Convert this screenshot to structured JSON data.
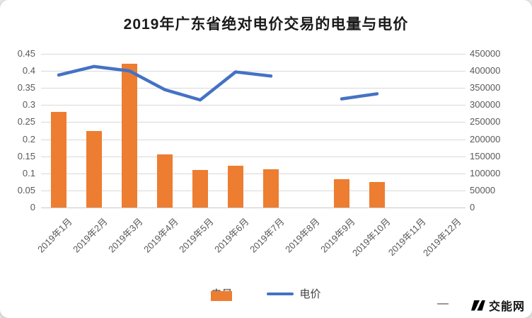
{
  "logo": {
    "text": "交能网"
  },
  "legend": [
    {
      "label": "电量",
      "type": "bar",
      "color": "#ED7D31"
    },
    {
      "label": "电价",
      "type": "line",
      "color": "#4472C4"
    }
  ],
  "chart_data": {
    "type": "combo",
    "title": "2019年广东省绝对电价交易的电量与电价",
    "categories": [
      "2019年1月",
      "2019年2月",
      "2019年3月",
      "2019年4月",
      "2019年5月",
      "2019年6月",
      "2019年7月",
      "2019年8月",
      "2019年9月",
      "2019年10月",
      "2019年11月",
      "2019年12月"
    ],
    "series": [
      {
        "name": "电量",
        "type": "bar",
        "axis": "left",
        "color": "#ED7D31",
        "values": [
          0.28,
          0.225,
          0.42,
          0.155,
          0.11,
          0.122,
          0.112,
          0,
          0.083,
          0.075,
          0,
          0
        ]
      },
      {
        "name": "电价",
        "type": "line",
        "axis": "right",
        "color": "#4472C4",
        "values": [
          388000,
          413000,
          400000,
          345000,
          315000,
          397000,
          385000,
          null,
          318000,
          333000,
          null,
          null
        ]
      }
    ],
    "left_axis": {
      "min": 0,
      "max": 0.45,
      "ticks": [
        "0",
        "0.05",
        "0.1",
        "0.15",
        "0.2",
        "0.25",
        "0.3",
        "0.35",
        "0.4",
        "0.45"
      ]
    },
    "right_axis": {
      "min": 0,
      "max": 450000,
      "ticks": [
        "0",
        "50000",
        "100000",
        "150000",
        "200000",
        "250000",
        "300000",
        "350000",
        "400000",
        "450000"
      ]
    },
    "grid": true,
    "legend_position": "bottom"
  }
}
